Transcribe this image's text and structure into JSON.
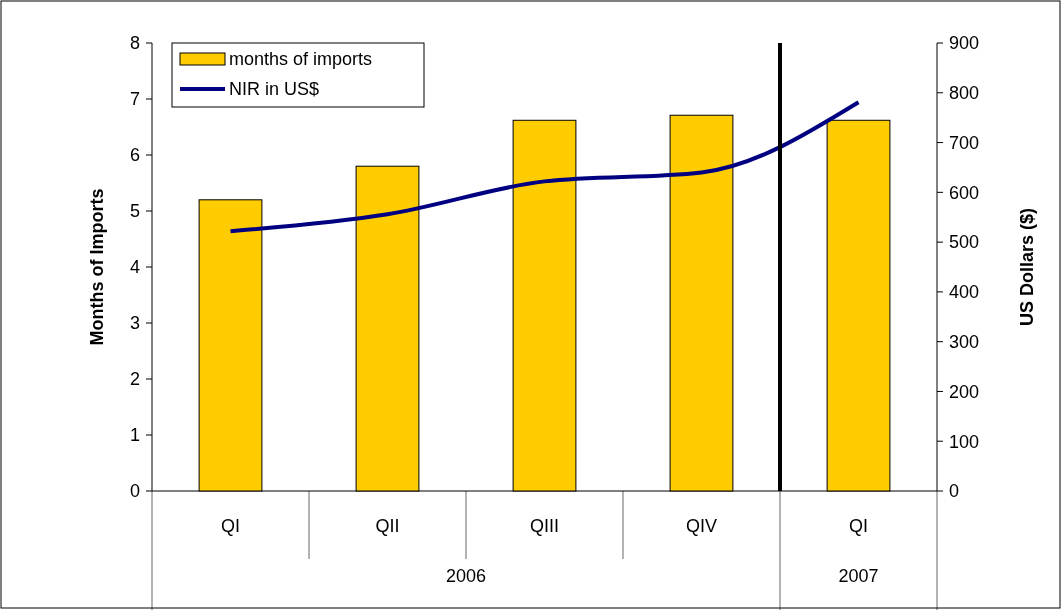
{
  "chart_data": {
    "type": "bar",
    "categories": [
      "QI",
      "QII",
      "QIII",
      "QIV",
      "QI"
    ],
    "ylabel": "Months of Imports",
    "y2label": "US Dollars ($)",
    "ylim": [
      0,
      8
    ],
    "yticks": [
      0,
      1,
      2,
      3,
      4,
      5,
      6,
      7,
      8
    ],
    "y2lim": [
      0,
      900
    ],
    "y2ticks": [
      0,
      100,
      200,
      300,
      400,
      500,
      600,
      700,
      800,
      900
    ],
    "series": [
      {
        "name": "months of imports",
        "color": "#ffcc00",
        "values": [
          5.2,
          5.8,
          6.62,
          6.71,
          6.62
        ]
      },
      {
        "name": "NIR in US$",
        "type": "line",
        "axis": "y2",
        "color": "#000080",
        "values": [
          522,
          556,
          622,
          640,
          781
        ]
      }
    ],
    "annotations": [
      "2006",
      "2007"
    ],
    "legend": "top left",
    "grid": false
  }
}
